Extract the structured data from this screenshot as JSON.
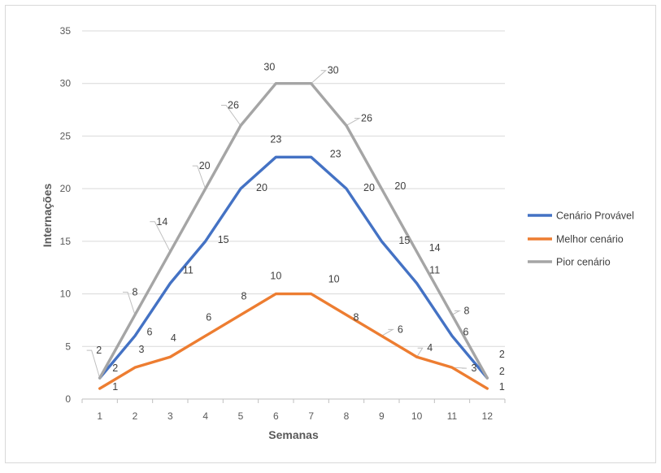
{
  "chart_data": {
    "type": "line",
    "title": "",
    "xlabel": "Semanas",
    "ylabel": "Internações",
    "ylim": [
      0,
      35
    ],
    "yticks": [
      0,
      5,
      10,
      15,
      20,
      25,
      30,
      35
    ],
    "grid": true,
    "legend_position": "right",
    "categories": [
      "1",
      "2",
      "3",
      "4",
      "5",
      "6",
      "7",
      "8",
      "9",
      "10",
      "11",
      "12"
    ],
    "series": [
      {
        "name": "Cenário Provável",
        "color": "#4472c4",
        "values": [
          2,
          6,
          11,
          15,
          20,
          23,
          23,
          20,
          15,
          11,
          6,
          2
        ]
      },
      {
        "name": "Melhor cenário",
        "color": "#ed7d31",
        "values": [
          1,
          3,
          4,
          6,
          8,
          10,
          10,
          8,
          6,
          4,
          3,
          1
        ]
      },
      {
        "name": "Pior cenário",
        "color": "#a5a5a5",
        "values": [
          2,
          8,
          14,
          20,
          26,
          30,
          30,
          26,
          20,
          14,
          8,
          2
        ]
      }
    ]
  }
}
